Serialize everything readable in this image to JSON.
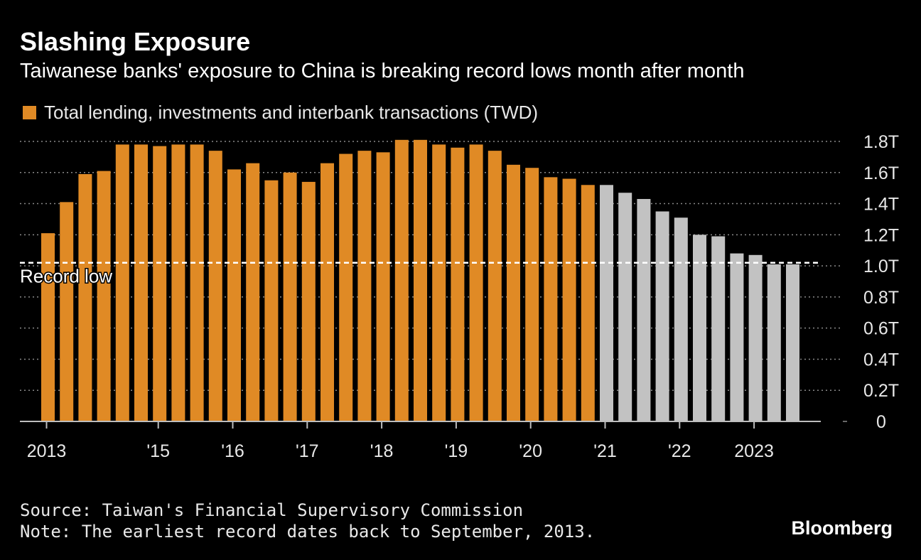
{
  "header": {
    "title": "Slashing Exposure",
    "subtitle": "Taiwanese banks' exposure to China is breaking record lows month after month"
  },
  "footer": {
    "source": "Source: Taiwan's Financial Supervisory Commission",
    "note": "Note: The earliest record dates back to September, 2013.",
    "brand": "Bloomberg"
  },
  "colors": {
    "background": "#000000",
    "bar_past": "#e08a25",
    "bar_recent": "#c2c2c2",
    "gridline": "#8a8a8a",
    "record_line": "#ffffff"
  },
  "chart_data": {
    "type": "bar",
    "title": "Slashing Exposure",
    "subtitle": "Taiwanese banks' exposure to China is breaking record lows month after month",
    "unit": "TWD trillion",
    "ylim": [
      0,
      1.8
    ],
    "y_ticks": [
      {
        "value": 0,
        "label": "0"
      },
      {
        "value": 0.2,
        "label": "0.2T"
      },
      {
        "value": 0.4,
        "label": "0.4T"
      },
      {
        "value": 0.6,
        "label": "0.6T"
      },
      {
        "value": 0.8,
        "label": "0.8T"
      },
      {
        "value": 1.0,
        "label": "1.0T"
      },
      {
        "value": 1.2,
        "label": "1.2T"
      },
      {
        "value": 1.4,
        "label": "1.4T"
      },
      {
        "value": 1.6,
        "label": "1.6T"
      },
      {
        "value": 1.8,
        "label": "1.8T"
      }
    ],
    "x_ticks": [
      {
        "index": 0,
        "label": "2013"
      },
      {
        "index": 6,
        "label": "'15"
      },
      {
        "index": 10,
        "label": "'16"
      },
      {
        "index": 14,
        "label": "'17"
      },
      {
        "index": 18,
        "label": "'18"
      },
      {
        "index": 22,
        "label": "'19"
      },
      {
        "index": 26,
        "label": "'20"
      },
      {
        "index": 30,
        "label": "'21"
      },
      {
        "index": 34,
        "label": "'22"
      },
      {
        "index": 38,
        "label": "2023"
      }
    ],
    "grid": true,
    "legend_position": "top-left",
    "series": [
      {
        "name": "Total lending, investments and interbank transactions (TWD)",
        "values": [
          1.21,
          1.41,
          1.59,
          1.61,
          1.78,
          1.78,
          1.77,
          1.78,
          1.78,
          1.74,
          1.62,
          1.66,
          1.55,
          1.6,
          1.54,
          1.66,
          1.72,
          1.74,
          1.73,
          1.81,
          1.81,
          1.78,
          1.76,
          1.78,
          1.74,
          1.65,
          1.63,
          1.57,
          1.56,
          1.52,
          1.52,
          1.47,
          1.43,
          1.35,
          1.31,
          1.2,
          1.19,
          1.08,
          1.07,
          1.01,
          1.01
        ],
        "highlight_from_index": 30
      }
    ],
    "annotations": [
      {
        "type": "hline",
        "value": 1.02,
        "label": "Record low"
      }
    ]
  }
}
